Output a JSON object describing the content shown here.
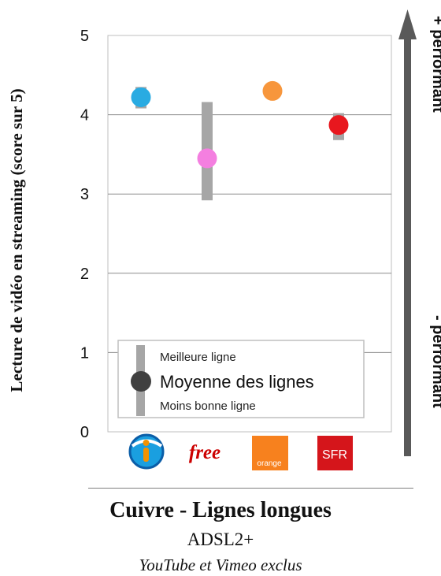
{
  "chart_data": {
    "type": "scatter",
    "title": "",
    "ylabel": "Lecture de vidéo en streaming (score sur 5)",
    "xlabel": "",
    "ylim": [
      0,
      5
    ],
    "yticks": [
      "0",
      "1",
      "2",
      "3",
      "4",
      "5"
    ],
    "grid": true,
    "categories": [
      "Bouygues Telecom",
      "free",
      "orange",
      "SFR"
    ],
    "series": [
      {
        "name": "Moyenne des lignes",
        "values": [
          4.22,
          3.45,
          4.3,
          3.87
        ]
      },
      {
        "name": "Meilleure ligne",
        "values": [
          4.35,
          4.16,
          4.3,
          4.02
        ]
      },
      {
        "name": "Moins bonne ligne",
        "values": [
          4.08,
          2.92,
          4.3,
          3.68
        ]
      }
    ],
    "colors": [
      "#29abe2",
      "#f47fe0",
      "#f7963c",
      "#e8171e"
    ],
    "range_bar_color": "#a6a6a6",
    "legend": {
      "placement": "bottom",
      "best": "Meilleure ligne",
      "mean": "Moyenne des lignes",
      "worst": "Moins bonne ligne"
    }
  },
  "arrow": {
    "top_label": "+ performant",
    "bottom_label": "- performant",
    "color": "#595959"
  },
  "logos": {
    "bouygues": "bouygues-logo-icon",
    "free": {
      "text": "free",
      "color": "#cc0000"
    },
    "orange": {
      "text": "orange",
      "color": "#f7811e"
    },
    "sfr": {
      "text": "SFR",
      "color": "#d5151b"
    }
  },
  "caption": {
    "title": "Cuivre - Lignes longues",
    "subtitle": "ADSL2+",
    "note": "YouTube et Vimeo exclus"
  }
}
